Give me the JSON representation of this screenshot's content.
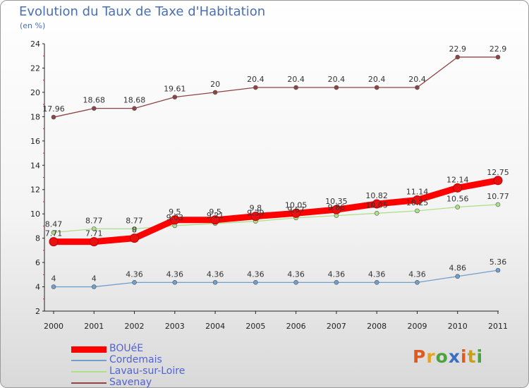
{
  "header": {
    "title": "Evolution du Taux de Taxe d'Habitation",
    "subtitle": "(en %)"
  },
  "logo": {
    "letters": [
      "P",
      "r",
      "o",
      "x",
      "i",
      "t",
      "i"
    ],
    "colors": [
      "#e0591f",
      "#e8a21a",
      "#4aa33c",
      "#3a6dc4",
      "#e0591f",
      "#c8a018",
      "#4aa33c"
    ]
  },
  "chart_data": {
    "type": "line",
    "x": [
      "2000",
      "2001",
      "2002",
      "2003",
      "2004",
      "2005",
      "2006",
      "2007",
      "2008",
      "2009",
      "2010",
      "2011"
    ],
    "ylim": [
      2,
      24
    ],
    "yticks": [
      "2",
      "4",
      "6",
      "8",
      "10",
      "12",
      "14",
      "16",
      "18",
      "20",
      "22",
      "24"
    ],
    "grid": false,
    "legend_position": "bottom-left",
    "series": [
      {
        "name": "BOUéE",
        "color": "#ff0000",
        "values": [
          7.71,
          7.71,
          8,
          9.5,
          9.5,
          9.8,
          10.05,
          10.35,
          10.82,
          11.14,
          12.14,
          12.75
        ],
        "labels": [
          "7.71",
          "7.71",
          "8",
          "9.5",
          "9.5",
          "9.8",
          "10.05",
          "10.35",
          "10.82",
          "11.14",
          "12.14",
          "12.75"
        ]
      },
      {
        "name": "Cordemais",
        "color": "#6f9fcf",
        "values": [
          4,
          4,
          4.36,
          4.36,
          4.36,
          4.36,
          4.36,
          4.36,
          4.36,
          4.36,
          4.86,
          5.36
        ],
        "labels": [
          "4",
          "4",
          "4.36",
          "4.36",
          "4.36",
          "4.36",
          "4.36",
          "4.36",
          "4.36",
          "4.36",
          "4.86",
          "5.36"
        ]
      },
      {
        "name": "Lavau-sur-Loire",
        "color": "#aee08a",
        "values": [
          8.47,
          8.77,
          8.77,
          9.03,
          9.21,
          9.39,
          9.67,
          9.86,
          10.05,
          10.25,
          10.56,
          10.77
        ],
        "labels": [
          "8.47",
          "8.77",
          "8.77",
          "9.03",
          "9.21",
          "9.39",
          "9.67",
          "9.86",
          "10.05",
          "10.25",
          "10.56",
          "10.77"
        ]
      },
      {
        "name": "Savenay",
        "color": "#8e4444",
        "values": [
          17.96,
          18.68,
          18.68,
          19.61,
          20,
          20.4,
          20.4,
          20.4,
          20.4,
          20.4,
          22.9,
          22.9
        ],
        "labels": [
          "17.96",
          "18.68",
          "18.68",
          "19.61",
          "20",
          "20.4",
          "20.4",
          "20.4",
          "20.4",
          "20.4",
          "22.9",
          "22.9"
        ]
      }
    ]
  }
}
